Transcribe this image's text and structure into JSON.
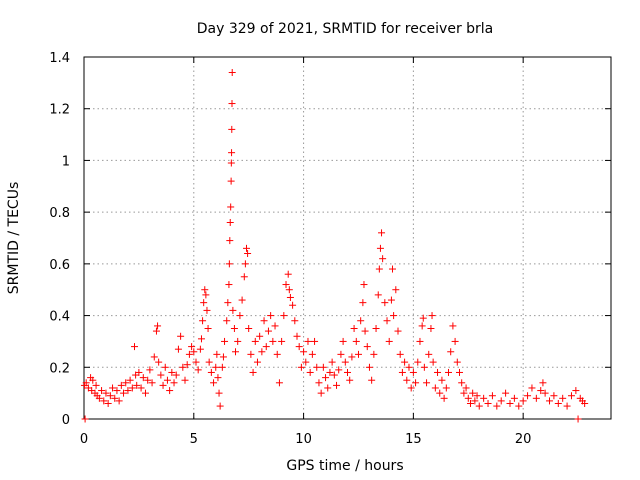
{
  "chart_data": {
    "type": "scatter",
    "title": "Day 329 of 2021, SRMTID for receiver brla",
    "xlabel": "GPS time / hours",
    "ylabel": "SRMTID / TECUs",
    "xlim": [
      0,
      24
    ],
    "ylim": [
      0,
      1.4
    ],
    "xticks": [
      0,
      5,
      10,
      15,
      20
    ],
    "xtick_labels": [
      "0",
      "5",
      "10",
      "15",
      "20"
    ],
    "yticks": [
      0,
      0.2,
      0.4,
      0.6,
      0.8,
      1.0,
      1.2,
      1.4
    ],
    "ytick_labels": [
      "0",
      "0.2",
      "0.4",
      "0.6",
      "0.8",
      "1",
      "1.2",
      "1.4"
    ],
    "grid": true,
    "marker": "+",
    "color": "#ff0000",
    "series": [
      {
        "name": "SRMTID",
        "points": [
          [
            0.02,
            0.13
          ],
          [
            0.05,
            0.0
          ],
          [
            0.1,
            0.14
          ],
          [
            0.2,
            0.12
          ],
          [
            0.3,
            0.16
          ],
          [
            0.35,
            0.11
          ],
          [
            0.4,
            0.15
          ],
          [
            0.5,
            0.1
          ],
          [
            0.55,
            0.13
          ],
          [
            0.6,
            0.09
          ],
          [
            0.7,
            0.08
          ],
          [
            0.8,
            0.11
          ],
          [
            0.9,
            0.07
          ],
          [
            1.0,
            0.1
          ],
          [
            1.1,
            0.06
          ],
          [
            1.2,
            0.09
          ],
          [
            1.3,
            0.12
          ],
          [
            1.4,
            0.08
          ],
          [
            1.5,
            0.11
          ],
          [
            1.6,
            0.07
          ],
          [
            1.7,
            0.13
          ],
          [
            1.8,
            0.1
          ],
          [
            1.9,
            0.14
          ],
          [
            2.0,
            0.11
          ],
          [
            2.1,
            0.15
          ],
          [
            2.2,
            0.12
          ],
          [
            2.3,
            0.28
          ],
          [
            2.35,
            0.17
          ],
          [
            2.4,
            0.13
          ],
          [
            2.5,
            0.18
          ],
          [
            2.6,
            0.12
          ],
          [
            2.7,
            0.16
          ],
          [
            2.8,
            0.1
          ],
          [
            2.9,
            0.15
          ],
          [
            3.0,
            0.19
          ],
          [
            3.1,
            0.14
          ],
          [
            3.2,
            0.24
          ],
          [
            3.3,
            0.34
          ],
          [
            3.35,
            0.36
          ],
          [
            3.4,
            0.22
          ],
          [
            3.5,
            0.17
          ],
          [
            3.6,
            0.13
          ],
          [
            3.7,
            0.2
          ],
          [
            3.8,
            0.15
          ],
          [
            3.9,
            0.11
          ],
          [
            4.0,
            0.18
          ],
          [
            4.1,
            0.14
          ],
          [
            4.2,
            0.17
          ],
          [
            4.3,
            0.27
          ],
          [
            4.4,
            0.32
          ],
          [
            4.5,
            0.2
          ],
          [
            4.6,
            0.15
          ],
          [
            4.7,
            0.21
          ],
          [
            4.8,
            0.25
          ],
          [
            4.9,
            0.28
          ],
          [
            5.0,
            0.26
          ],
          [
            5.1,
            0.22
          ],
          [
            5.2,
            0.19
          ],
          [
            5.3,
            0.27
          ],
          [
            5.35,
            0.31
          ],
          [
            5.4,
            0.38
          ],
          [
            5.45,
            0.45
          ],
          [
            5.5,
            0.5
          ],
          [
            5.55,
            0.48
          ],
          [
            5.6,
            0.42
          ],
          [
            5.65,
            0.35
          ],
          [
            5.7,
            0.22
          ],
          [
            5.8,
            0.18
          ],
          [
            5.9,
            0.14
          ],
          [
            6.0,
            0.2
          ],
          [
            6.05,
            0.25
          ],
          [
            6.1,
            0.16
          ],
          [
            6.15,
            0.1
          ],
          [
            6.2,
            0.05
          ],
          [
            6.3,
            0.2
          ],
          [
            6.35,
            0.24
          ],
          [
            6.4,
            0.3
          ],
          [
            6.5,
            0.38
          ],
          [
            6.55,
            0.45
          ],
          [
            6.6,
            0.52
          ],
          [
            6.62,
            0.6
          ],
          [
            6.64,
            0.69
          ],
          [
            6.66,
            0.76
          ],
          [
            6.68,
            0.82
          ],
          [
            6.7,
            0.92
          ],
          [
            6.71,
            0.99
          ],
          [
            6.72,
            1.03
          ],
          [
            6.73,
            1.12
          ],
          [
            6.74,
            1.22
          ],
          [
            6.75,
            1.34
          ],
          [
            6.78,
            0.42
          ],
          [
            6.85,
            0.35
          ],
          [
            6.9,
            0.26
          ],
          [
            7.0,
            0.3
          ],
          [
            7.1,
            0.4
          ],
          [
            7.2,
            0.46
          ],
          [
            7.3,
            0.55
          ],
          [
            7.35,
            0.6
          ],
          [
            7.4,
            0.66
          ],
          [
            7.45,
            0.64
          ],
          [
            7.5,
            0.35
          ],
          [
            7.6,
            0.25
          ],
          [
            7.7,
            0.18
          ],
          [
            7.8,
            0.3
          ],
          [
            7.9,
            0.22
          ],
          [
            8.0,
            0.32
          ],
          [
            8.1,
            0.26
          ],
          [
            8.2,
            0.38
          ],
          [
            8.3,
            0.28
          ],
          [
            8.4,
            0.34
          ],
          [
            8.5,
            0.4
          ],
          [
            8.6,
            0.3
          ],
          [
            8.7,
            0.36
          ],
          [
            8.8,
            0.25
          ],
          [
            8.9,
            0.14
          ],
          [
            9.0,
            0.3
          ],
          [
            9.1,
            0.4
          ],
          [
            9.2,
            0.52
          ],
          [
            9.3,
            0.56
          ],
          [
            9.35,
            0.5
          ],
          [
            9.4,
            0.47
          ],
          [
            9.5,
            0.44
          ],
          [
            9.6,
            0.38
          ],
          [
            9.7,
            0.32
          ],
          [
            9.8,
            0.28
          ],
          [
            9.9,
            0.2
          ],
          [
            10.0,
            0.26
          ],
          [
            10.1,
            0.22
          ],
          [
            10.2,
            0.3
          ],
          [
            10.3,
            0.18
          ],
          [
            10.4,
            0.25
          ],
          [
            10.5,
            0.3
          ],
          [
            10.6,
            0.2
          ],
          [
            10.7,
            0.14
          ],
          [
            10.8,
            0.1
          ],
          [
            10.9,
            0.2
          ],
          [
            11.0,
            0.16
          ],
          [
            11.1,
            0.12
          ],
          [
            11.2,
            0.18
          ],
          [
            11.3,
            0.22
          ],
          [
            11.4,
            0.17
          ],
          [
            11.5,
            0.13
          ],
          [
            11.6,
            0.19
          ],
          [
            11.7,
            0.25
          ],
          [
            11.8,
            0.3
          ],
          [
            11.9,
            0.22
          ],
          [
            12.0,
            0.18
          ],
          [
            12.1,
            0.15
          ],
          [
            12.2,
            0.24
          ],
          [
            12.3,
            0.35
          ],
          [
            12.4,
            0.3
          ],
          [
            12.5,
            0.25
          ],
          [
            12.6,
            0.38
          ],
          [
            12.7,
            0.45
          ],
          [
            12.75,
            0.52
          ],
          [
            12.8,
            0.34
          ],
          [
            12.9,
            0.28
          ],
          [
            13.0,
            0.2
          ],
          [
            13.1,
            0.15
          ],
          [
            13.2,
            0.25
          ],
          [
            13.3,
            0.35
          ],
          [
            13.4,
            0.48
          ],
          [
            13.45,
            0.58
          ],
          [
            13.5,
            0.66
          ],
          [
            13.55,
            0.72
          ],
          [
            13.6,
            0.62
          ],
          [
            13.7,
            0.45
          ],
          [
            13.8,
            0.38
          ],
          [
            13.9,
            0.3
          ],
          [
            14.0,
            0.46
          ],
          [
            14.05,
            0.58
          ],
          [
            14.1,
            0.4
          ],
          [
            14.2,
            0.5
          ],
          [
            14.3,
            0.34
          ],
          [
            14.4,
            0.25
          ],
          [
            14.5,
            0.18
          ],
          [
            14.6,
            0.22
          ],
          [
            14.7,
            0.15
          ],
          [
            14.8,
            0.2
          ],
          [
            14.9,
            0.12
          ],
          [
            15.0,
            0.18
          ],
          [
            15.1,
            0.14
          ],
          [
            15.2,
            0.22
          ],
          [
            15.3,
            0.3
          ],
          [
            15.4,
            0.36
          ],
          [
            15.45,
            0.39
          ],
          [
            15.5,
            0.2
          ],
          [
            15.6,
            0.14
          ],
          [
            15.7,
            0.25
          ],
          [
            15.8,
            0.35
          ],
          [
            15.85,
            0.4
          ],
          [
            15.9,
            0.22
          ],
          [
            16.0,
            0.12
          ],
          [
            16.1,
            0.18
          ],
          [
            16.2,
            0.1
          ],
          [
            16.3,
            0.15
          ],
          [
            16.4,
            0.08
          ],
          [
            16.5,
            0.12
          ],
          [
            16.6,
            0.18
          ],
          [
            16.7,
            0.26
          ],
          [
            16.8,
            0.36
          ],
          [
            16.9,
            0.3
          ],
          [
            17.0,
            0.22
          ],
          [
            17.1,
            0.18
          ],
          [
            17.2,
            0.14
          ],
          [
            17.3,
            0.1
          ],
          [
            17.4,
            0.12
          ],
          [
            17.5,
            0.08
          ],
          [
            17.6,
            0.06
          ],
          [
            17.7,
            0.1
          ],
          [
            17.8,
            0.07
          ],
          [
            17.9,
            0.09
          ],
          [
            18.0,
            0.05
          ],
          [
            18.2,
            0.08
          ],
          [
            18.4,
            0.06
          ],
          [
            18.6,
            0.09
          ],
          [
            18.8,
            0.05
          ],
          [
            19.0,
            0.07
          ],
          [
            19.2,
            0.1
          ],
          [
            19.4,
            0.06
          ],
          [
            19.6,
            0.08
          ],
          [
            19.8,
            0.05
          ],
          [
            20.0,
            0.07
          ],
          [
            20.2,
            0.09
          ],
          [
            20.4,
            0.12
          ],
          [
            20.6,
            0.08
          ],
          [
            20.8,
            0.11
          ],
          [
            20.9,
            0.14
          ],
          [
            21.0,
            0.1
          ],
          [
            21.2,
            0.07
          ],
          [
            21.4,
            0.09
          ],
          [
            21.6,
            0.06
          ],
          [
            21.8,
            0.08
          ],
          [
            22.0,
            0.05
          ],
          [
            22.2,
            0.09
          ],
          [
            22.4,
            0.11
          ],
          [
            22.5,
            0.0
          ],
          [
            22.6,
            0.08
          ],
          [
            22.7,
            0.07
          ],
          [
            22.8,
            0.06
          ]
        ]
      }
    ]
  }
}
